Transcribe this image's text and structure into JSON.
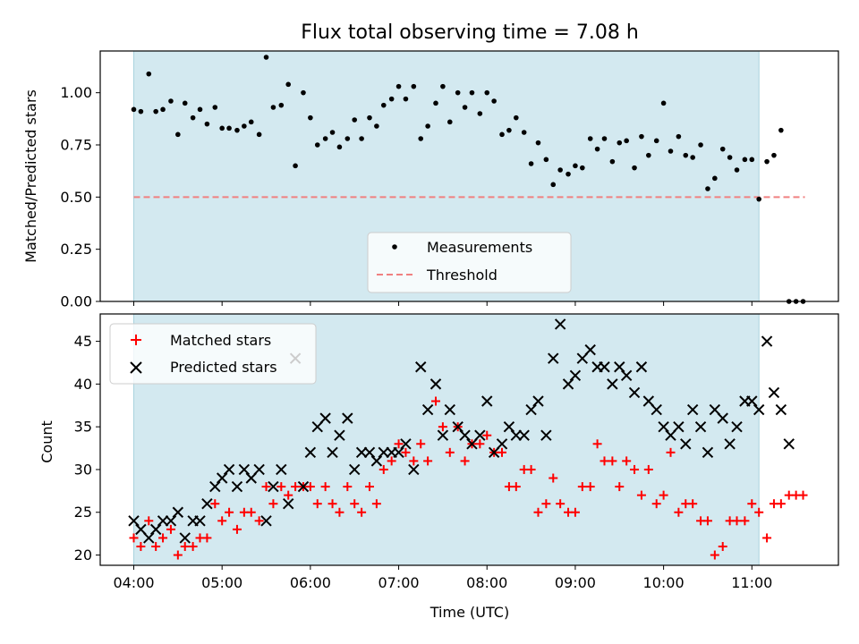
{
  "chart_data": {
    "title": "Flux total observing time = 7.08 h",
    "xlabel": "Time (UTC)",
    "x_unit": "hours UTC",
    "xlim": [
      3.62,
      11.98
    ],
    "x_ticks": [
      {
        "value": 4,
        "label": "04:00"
      },
      {
        "value": 5,
        "label": "05:00"
      },
      {
        "value": 6,
        "label": "06:00"
      },
      {
        "value": 7,
        "label": "07:00"
      },
      {
        "value": 8,
        "label": "08:00"
      },
      {
        "value": 9,
        "label": "09:00"
      },
      {
        "value": 10,
        "label": "10:00"
      },
      {
        "value": 11,
        "label": "11:00"
      }
    ],
    "observing_window": {
      "start": 4.0,
      "end": 11.08,
      "color": "#d3e9f0"
    },
    "panels": [
      {
        "id": "ratio",
        "type": "scatter",
        "ylabel": "Matched/Predicted stars",
        "ylim": [
          0,
          1.2
        ],
        "y_ticks": [
          {
            "value": 0,
            "label": "0.00"
          },
          {
            "value": 0.25,
            "label": "0.25"
          },
          {
            "value": 0.5,
            "label": "0.50"
          },
          {
            "value": 0.75,
            "label": "0.75"
          },
          {
            "value": 1.0,
            "label": "1.00"
          }
        ],
        "legend": [
          {
            "label": "Measurements",
            "marker": "dot",
            "color": "#000000"
          },
          {
            "label": "Threshold",
            "marker": "dashed-line",
            "color": "#f08080"
          }
        ],
        "threshold": {
          "y": 0.5,
          "x_start": 4.0,
          "x_end": 11.6,
          "color": "#f08080"
        },
        "series": [
          {
            "name": "Measurements",
            "color": "#000000",
            "x": [
              4.0,
              4.08,
              4.17,
              4.25,
              4.33,
              4.42,
              4.5,
              4.58,
              4.67,
              4.75,
              4.83,
              4.92,
              5.0,
              5.08,
              5.17,
              5.25,
              5.33,
              5.42,
              5.5,
              5.58,
              5.67,
              5.75,
              5.83,
              5.92,
              6.0,
              6.08,
              6.17,
              6.25,
              6.33,
              6.42,
              6.5,
              6.58,
              6.67,
              6.75,
              6.83,
              6.92,
              7.0,
              7.08,
              7.17,
              7.25,
              7.33,
              7.42,
              7.5,
              7.58,
              7.67,
              7.75,
              7.83,
              7.92,
              8.0,
              8.08,
              8.17,
              8.25,
              8.33,
              8.42,
              8.5,
              8.58,
              8.67,
              8.75,
              8.83,
              8.92,
              9.0,
              9.08,
              9.17,
              9.25,
              9.33,
              9.42,
              9.5,
              9.58,
              9.67,
              9.75,
              9.83,
              9.92,
              10.0,
              10.08,
              10.17,
              10.25,
              10.33,
              10.42,
              10.5,
              10.58,
              10.67,
              10.75,
              10.83,
              10.92,
              11.0,
              11.08,
              11.17,
              11.25,
              11.33,
              11.42,
              11.5,
              11.58
            ],
            "y": [
              0.92,
              0.91,
              1.09,
              0.91,
              0.92,
              0.96,
              0.8,
              0.95,
              0.88,
              0.92,
              0.85,
              0.93,
              0.83,
              0.83,
              0.82,
              0.84,
              0.86,
              0.8,
              1.17,
              0.93,
              0.94,
              1.04,
              0.65,
              1.0,
              0.88,
              0.75,
              0.78,
              0.81,
              0.74,
              0.78,
              0.87,
              0.78,
              0.88,
              0.84,
              0.94,
              0.97,
              1.03,
              0.97,
              1.03,
              0.78,
              0.84,
              0.95,
              1.03,
              0.86,
              1.0,
              0.93,
              1.0,
              0.9,
              1.0,
              0.96,
              0.8,
              0.82,
              0.88,
              0.81,
              0.66,
              0.76,
              0.68,
              0.56,
              0.63,
              0.61,
              0.65,
              0.64,
              0.78,
              0.73,
              0.78,
              0.67,
              0.76,
              0.77,
              0.64,
              0.79,
              0.7,
              0.77,
              0.95,
              0.72,
              0.79,
              0.7,
              0.69,
              0.75,
              0.54,
              0.59,
              0.73,
              0.69,
              0.63,
              0.68,
              0.68,
              0.49,
              0.67,
              0.7,
              0.82,
              0.0,
              0.0,
              0.0
            ]
          }
        ]
      },
      {
        "id": "counts",
        "type": "scatter",
        "ylabel": "Count",
        "ylim": [
          18.8,
          48.2
        ],
        "y_ticks": [
          {
            "value": 20,
            "label": "20"
          },
          {
            "value": 25,
            "label": "25"
          },
          {
            "value": 30,
            "label": "30"
          },
          {
            "value": 35,
            "label": "35"
          },
          {
            "value": 40,
            "label": "40"
          },
          {
            "value": 45,
            "label": "45"
          }
        ],
        "legend": [
          {
            "label": "Matched stars",
            "marker": "plus",
            "color": "#ff0000"
          },
          {
            "label": "Predicted stars",
            "marker": "x",
            "color": "#000000"
          }
        ],
        "series": [
          {
            "name": "Matched stars",
            "marker": "plus",
            "color": "#ff0000",
            "x": [
              4.0,
              4.08,
              4.17,
              4.25,
              4.33,
              4.42,
              4.5,
              4.58,
              4.67,
              4.75,
              4.83,
              4.92,
              5.0,
              5.08,
              5.17,
              5.25,
              5.33,
              5.42,
              5.5,
              5.58,
              5.67,
              5.75,
              5.83,
              5.92,
              6.0,
              6.08,
              6.17,
              6.25,
              6.33,
              6.42,
              6.5,
              6.58,
              6.67,
              6.75,
              6.83,
              6.92,
              7.0,
              7.08,
              7.17,
              7.25,
              7.33,
              7.42,
              7.5,
              7.58,
              7.67,
              7.75,
              7.83,
              7.92,
              8.0,
              8.08,
              8.17,
              8.25,
              8.33,
              8.42,
              8.5,
              8.58,
              8.67,
              8.75,
              8.83,
              8.92,
              9.0,
              9.08,
              9.17,
              9.25,
              9.33,
              9.42,
              9.5,
              9.58,
              9.67,
              9.75,
              9.83,
              9.92,
              10.0,
              10.08,
              10.17,
              10.25,
              10.33,
              10.42,
              10.5,
              10.58,
              10.67,
              10.75,
              10.83,
              10.92,
              11.0,
              11.08,
              11.17,
              11.25,
              11.33,
              11.42,
              11.5,
              11.58
            ],
            "y": [
              22,
              21,
              24,
              21,
              22,
              23,
              20,
              21,
              21,
              22,
              22,
              26,
              24,
              25,
              23,
              25,
              25,
              24,
              28,
              26,
              28,
              27,
              28,
              28,
              28,
              26,
              28,
              26,
              25,
              28,
              26,
              25,
              28,
              26,
              30,
              31,
              33,
              32,
              31,
              33,
              31,
              38,
              35,
              32,
              35,
              31,
              33,
              33,
              34,
              32,
              32,
              28,
              28,
              30,
              30,
              25,
              26,
              29,
              26,
              25,
              25,
              28,
              28,
              33,
              31,
              31,
              28,
              31,
              30,
              27,
              30,
              26,
              27,
              32,
              25,
              26,
              26,
              24,
              24,
              20,
              21,
              24,
              24,
              24,
              26,
              25,
              22,
              26,
              26,
              27,
              27,
              27
            ]
          },
          {
            "name": "Predicted stars",
            "marker": "x",
            "color": "#000000",
            "x": [
              4.0,
              4.08,
              4.17,
              4.25,
              4.33,
              4.42,
              4.5,
              4.58,
              4.67,
              4.75,
              4.83,
              4.92,
              5.0,
              5.08,
              5.17,
              5.25,
              5.33,
              5.42,
              5.5,
              5.58,
              5.67,
              5.75,
              5.83,
              5.92,
              6.0,
              6.08,
              6.17,
              6.25,
              6.33,
              6.42,
              6.5,
              6.58,
              6.67,
              6.75,
              6.83,
              6.92,
              7.0,
              7.08,
              7.17,
              7.25,
              7.33,
              7.42,
              7.5,
              7.58,
              7.67,
              7.75,
              7.83,
              7.92,
              8.0,
              8.08,
              8.17,
              8.25,
              8.33,
              8.42,
              8.5,
              8.58,
              8.67,
              8.75,
              8.83,
              8.92,
              9.0,
              9.08,
              9.17,
              9.25,
              9.33,
              9.42,
              9.5,
              9.58,
              9.67,
              9.75,
              9.83,
              9.92,
              10.0,
              10.08,
              10.17,
              10.25,
              10.33,
              10.42,
              10.5,
              10.58,
              10.67,
              10.75,
              10.83,
              10.92,
              11.0,
              11.08,
              11.17,
              11.25,
              11.33,
              11.42
            ],
            "y": [
              24,
              23,
              22,
              23,
              24,
              24,
              25,
              22,
              24,
              24,
              26,
              28,
              29,
              30,
              28,
              30,
              29,
              30,
              24,
              28,
              30,
              26,
              43,
              28,
              32,
              35,
              36,
              32,
              34,
              36,
              30,
              32,
              32,
              31,
              32,
              32,
              32,
              33,
              30,
              42,
              37,
              40,
              34,
              37,
              35,
              34,
              33,
              34,
              38,
              32,
              33,
              35,
              34,
              34,
              37,
              38,
              34,
              43,
              47,
              40,
              41,
              43,
              44,
              42,
              42,
              40,
              42,
              41,
              39,
              42,
              38,
              37,
              35,
              34,
              35,
              33,
              37,
              35,
              32,
              37,
              36,
              33,
              35,
              38,
              38,
              37,
              45,
              39,
              37,
              33
            ]
          }
        ]
      }
    ]
  }
}
